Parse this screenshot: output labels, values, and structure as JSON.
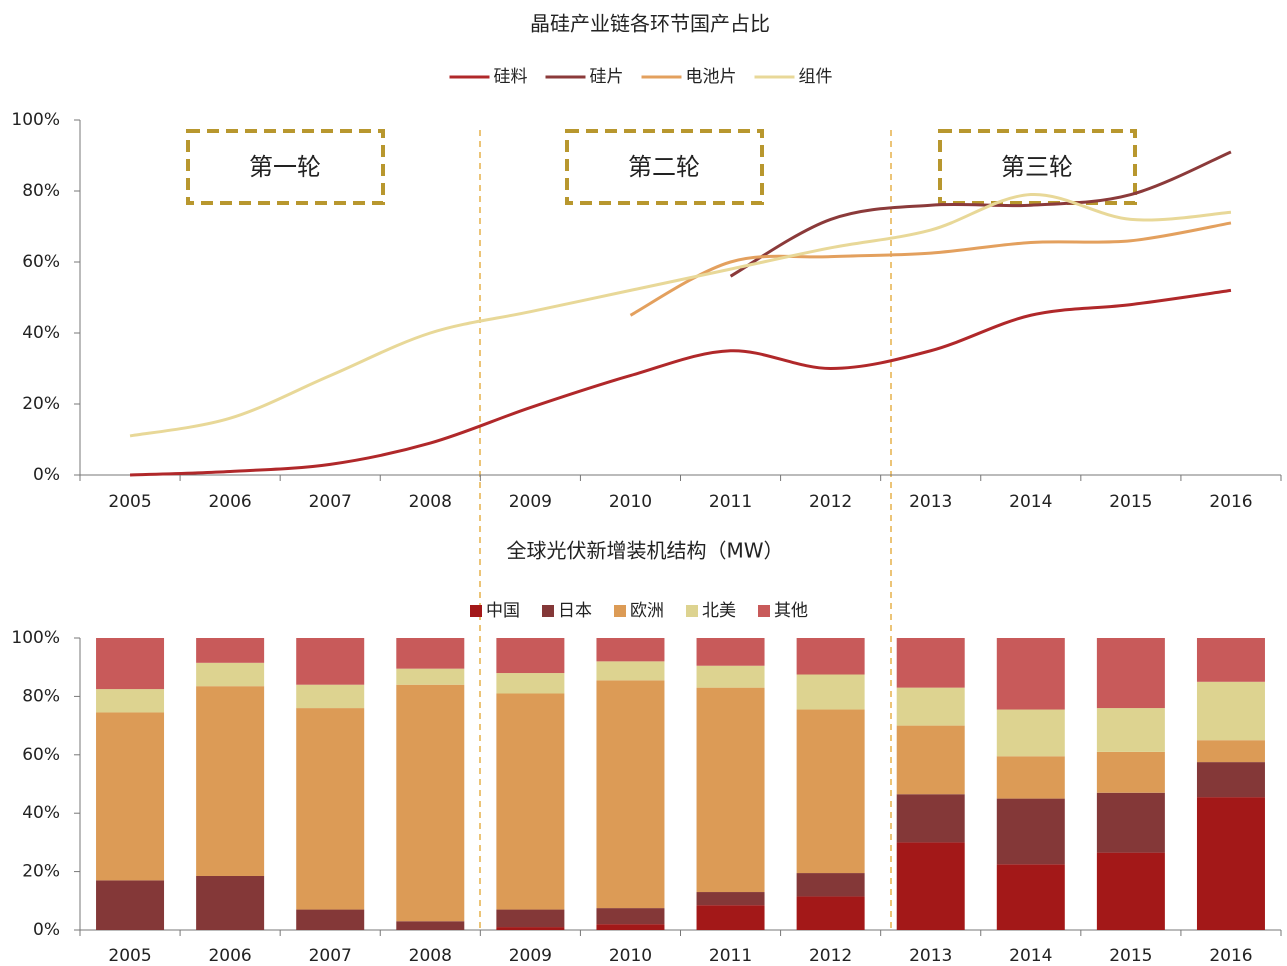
{
  "chart_data": [
    {
      "type": "line",
      "title": "晶硅产业链各环节国产占比",
      "categories": [
        "2005",
        "2006",
        "2007",
        "2008",
        "2009",
        "2010",
        "2011",
        "2012",
        "2013",
        "2014",
        "2015",
        "2016"
      ],
      "series": [
        {
          "name": "硅料",
          "color": "#b0282a",
          "values": [
            0,
            1,
            3,
            9,
            19,
            28,
            35,
            30,
            35,
            45,
            48,
            52
          ]
        },
        {
          "name": "硅片",
          "color": "#8b3a3a",
          "values": [
            null,
            null,
            null,
            null,
            null,
            null,
            56,
            72,
            76,
            76,
            79,
            91
          ]
        },
        {
          "name": "电池片",
          "color": "#e3a05e",
          "values": [
            null,
            null,
            null,
            null,
            null,
            45,
            60,
            61.5,
            62.5,
            65.5,
            66,
            71
          ]
        },
        {
          "name": "组件",
          "color": "#e8d898",
          "values": [
            11,
            16,
            28,
            40,
            46,
            52,
            58,
            64,
            69,
            79,
            72,
            74
          ]
        }
      ],
      "ylim": [
        0,
        100
      ],
      "yticks": [
        {
          "value": 0,
          "label": "0%"
        },
        {
          "value": 20,
          "label": "20%"
        },
        {
          "value": 40,
          "label": "40%"
        },
        {
          "value": 60,
          "label": "60%"
        },
        {
          "value": 80,
          "label": "80%"
        },
        {
          "value": 100,
          "label": "100%"
        }
      ],
      "annotations": [
        "第一轮",
        "第二轮",
        "第三轮"
      ],
      "legend": "top"
    },
    {
      "type": "stacked_bar",
      "title": "全球光伏新增装机结构（MW）",
      "categories": [
        "2005",
        "2006",
        "2007",
        "2008",
        "2009",
        "2010",
        "2011",
        "2012",
        "2013",
        "2014",
        "2015",
        "2016"
      ],
      "series": [
        {
          "name": "中国",
          "color": "#a31818",
          "values": [
            0,
            0,
            0,
            0,
            1,
            2,
            8.5,
            11.5,
            30,
            22.5,
            26.5,
            45.5
          ]
        },
        {
          "name": "日本",
          "color": "#843838",
          "values": [
            17,
            18.5,
            7,
            3,
            6,
            5.5,
            4.5,
            8,
            16.5,
            22.5,
            20.5,
            12
          ]
        },
        {
          "name": "欧洲",
          "color": "#dc9b56",
          "values": [
            57.5,
            65,
            69,
            81,
            74,
            78,
            70,
            56,
            23.5,
            14.5,
            14,
            7.5
          ]
        },
        {
          "name": "北美",
          "color": "#ddd390",
          "values": [
            8,
            8,
            8,
            5.5,
            7,
            6.5,
            7.5,
            12,
            13,
            16,
            15,
            20
          ]
        },
        {
          "name": "其他",
          "color": "#c85a5a",
          "values": [
            17.5,
            8.5,
            16,
            10.5,
            12,
            8,
            9.5,
            12.5,
            17,
            24.5,
            24,
            15
          ]
        }
      ],
      "ylim": [
        0,
        100
      ],
      "yticks": [
        {
          "value": 0,
          "label": "0%"
        },
        {
          "value": 20,
          "label": "20%"
        },
        {
          "value": 40,
          "label": "40%"
        },
        {
          "value": 60,
          "label": "60%"
        },
        {
          "value": 80,
          "label": "80%"
        },
        {
          "value": 100,
          "label": "100%"
        }
      ],
      "legend": "top"
    }
  ]
}
